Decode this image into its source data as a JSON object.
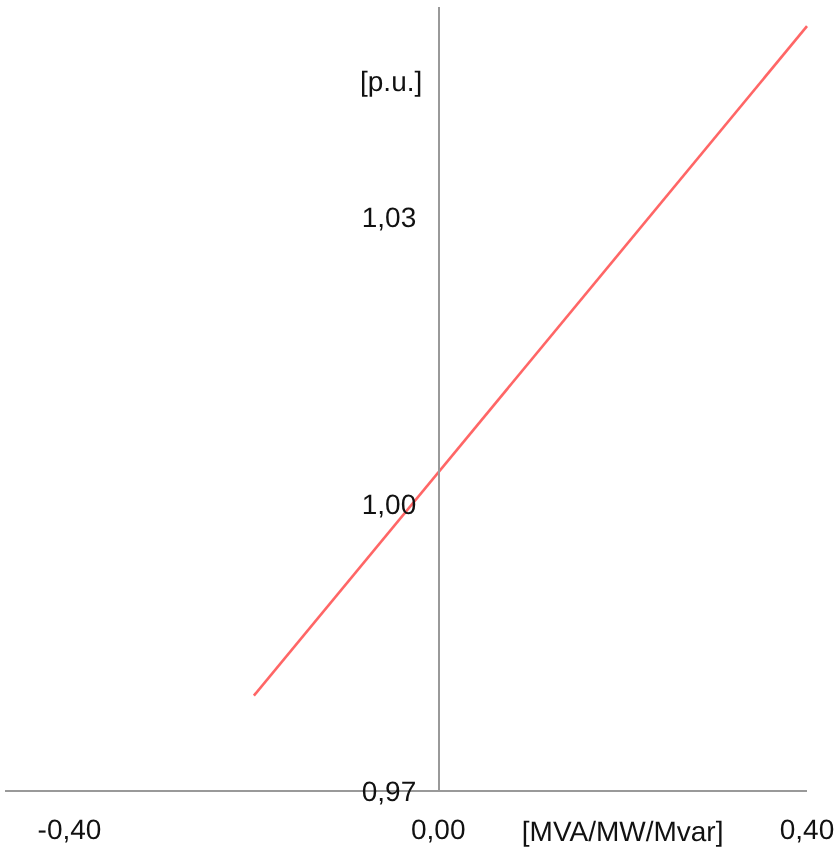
{
  "chart_data": {
    "type": "line",
    "xlabel": "[MVA/MW/Mvar]",
    "ylabel": "[p.u.]",
    "x": [
      -0.2,
      0.4
    ],
    "series": [
      {
        "color": "#ff6666",
        "values": [
          0.98,
          1.05
        ]
      }
    ],
    "xlim": [
      -0.47,
      0.4
    ],
    "ylim": [
      0.97,
      1.052
    ],
    "xticks": [
      {
        "value": -0.4,
        "label": "-0,40"
      },
      {
        "value": 0,
        "label": "0,00"
      },
      {
        "value": 0.4,
        "label": "0,40"
      }
    ],
    "yticks": [
      {
        "value": 0.97,
        "label": "0,97"
      },
      {
        "value": 1.0,
        "label": "1,00"
      },
      {
        "value": 1.03,
        "label": "1,03"
      }
    ],
    "grid": false,
    "marker": "none",
    "line_style": "solid"
  }
}
